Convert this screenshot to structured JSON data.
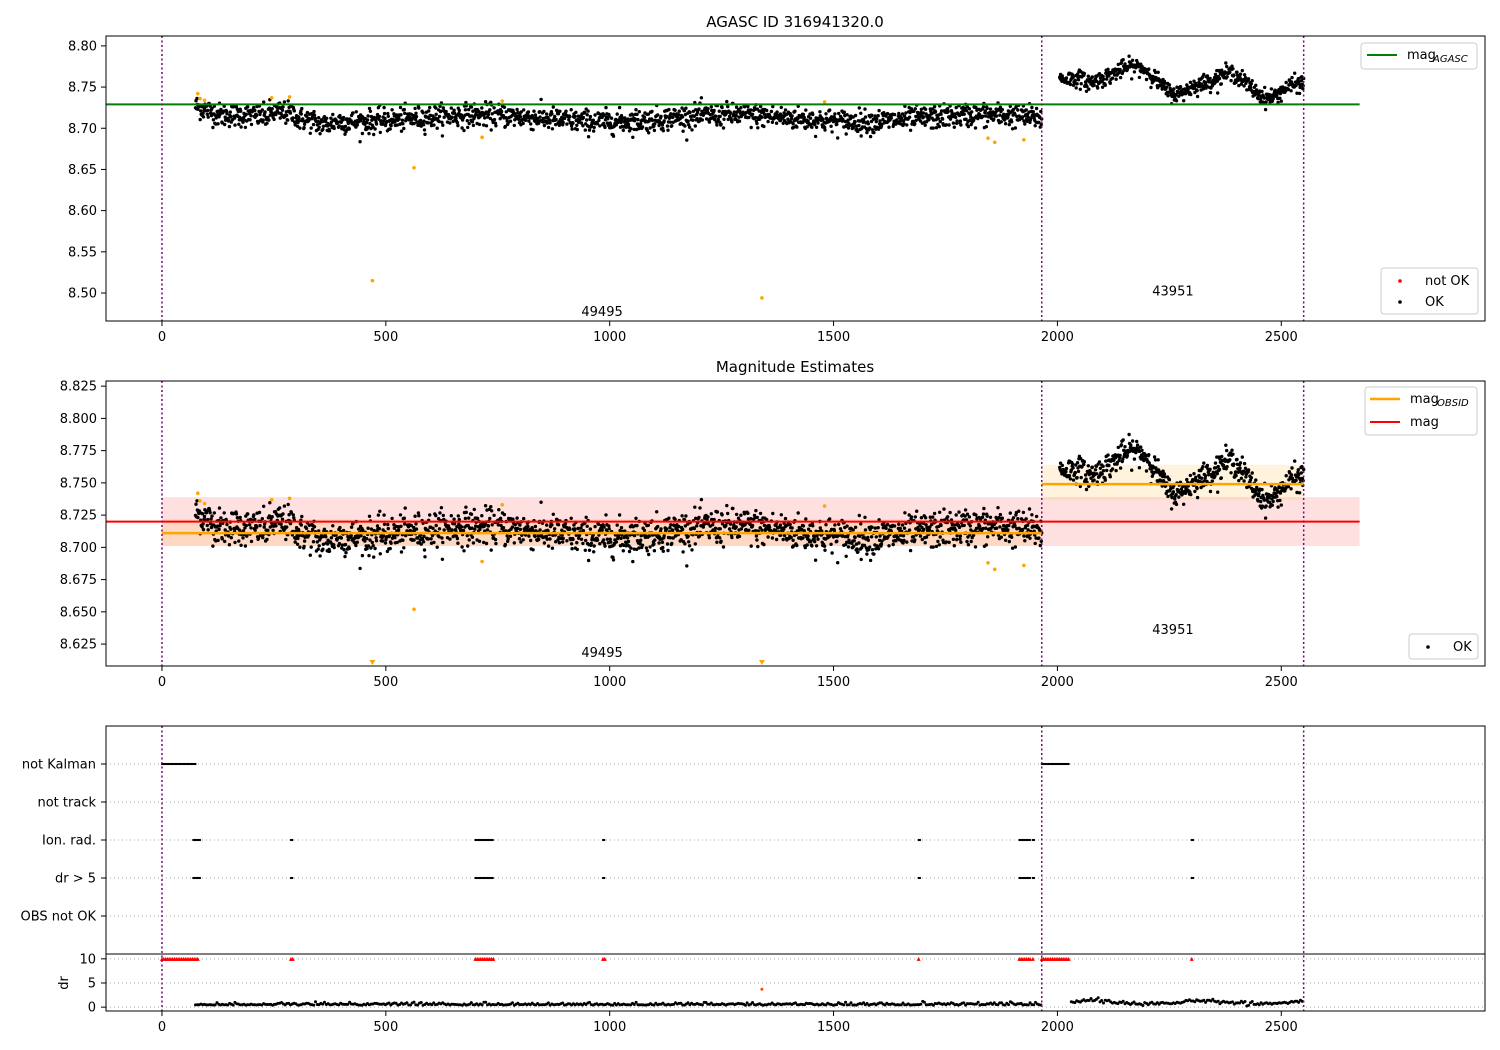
{
  "chart_data": [
    {
      "type": "scatter",
      "title": "AGASC ID 316941320.0",
      "xlim": [
        -125,
        2955
      ],
      "ylim": [
        8.466,
        8.812
      ],
      "xticks": [
        0,
        500,
        1000,
        1500,
        2000,
        2500
      ],
      "yticks": [
        8.5,
        8.55,
        8.6,
        8.65,
        8.7,
        8.75,
        8.8
      ],
      "ytick_labels": [
        "8.50",
        "8.55",
        "8.60",
        "8.65",
        "8.70",
        "8.75",
        "8.80"
      ],
      "obsid_boundaries": [
        0,
        1965,
        2550
      ],
      "obsid_labels": [
        {
          "text": "49495",
          "x": 983,
          "y": 8.477
        },
        {
          "text": "43951",
          "x": 2258,
          "y": 8.502
        }
      ],
      "mag_agasc": {
        "value": 8.729,
        "x": [
          0,
          2675
        ],
        "color": "#008000"
      },
      "segments": [
        {
          "x": [
            75,
            1965
          ],
          "mean": 8.712,
          "noise": 0.007
        },
        {
          "x": [
            2005,
            2550
          ],
          "mean": 8.75
        }
      ],
      "outliers": [
        {
          "x": 470,
          "y": 8.515
        },
        {
          "x": 563,
          "y": 8.652
        },
        {
          "x": 715,
          "y": 8.689
        },
        {
          "x": 1340,
          "y": 8.494
        },
        {
          "x": 1845,
          "y": 8.688
        },
        {
          "x": 1860,
          "y": 8.683
        },
        {
          "x": 1925,
          "y": 8.686
        },
        {
          "x": 80,
          "y": 8.742
        },
        {
          "x": 85,
          "y": 8.736
        },
        {
          "x": 95,
          "y": 8.734
        },
        {
          "x": 245,
          "y": 8.737
        },
        {
          "x": 285,
          "y": 8.738
        },
        {
          "x": 760,
          "y": 8.733
        },
        {
          "x": 1480,
          "y": 8.732
        }
      ],
      "legend_top": [
        {
          "label": "mag",
          "sub": "AGASC",
          "color": "#008000"
        }
      ],
      "legend_bottom": [
        {
          "label": "not OK",
          "color": "#ff0000"
        },
        {
          "label": "OK",
          "color": "#000000"
        }
      ]
    },
    {
      "type": "scatter",
      "title": "Magnitude Estimates",
      "xlim": [
        -125,
        2955
      ],
      "ylim": [
        8.608,
        8.829
      ],
      "xticks": [
        0,
        500,
        1000,
        1500,
        2000,
        2500
      ],
      "yticks": [
        8.625,
        8.65,
        8.675,
        8.7,
        8.725,
        8.75,
        8.775,
        8.8,
        8.825
      ],
      "ytick_labels": [
        "8.625",
        "8.650",
        "8.675",
        "8.700",
        "8.725",
        "8.750",
        "8.775",
        "8.800",
        "8.825"
      ],
      "obsid_boundaries": [
        0,
        1965,
        2550
      ],
      "obsid_labels": [
        {
          "text": "49495",
          "x": 983,
          "y": 8.618
        },
        {
          "text": "43951",
          "x": 2258,
          "y": 8.636
        }
      ],
      "mag": {
        "value": 8.72,
        "band": [
          8.701,
          8.739
        ],
        "x": [
          0,
          2675
        ],
        "color": "#ff0000"
      },
      "mag_obsid": [
        {
          "value": 8.711,
          "band": [
            8.701,
            8.722
          ],
          "x": [
            0,
            1965
          ]
        },
        {
          "value": 8.749,
          "band": [
            8.737,
            8.764
          ],
          "x": [
            1965,
            2550
          ]
        }
      ],
      "legend_top": [
        {
          "label": "mag",
          "sub": "OBSID",
          "color": "#ffa500"
        },
        {
          "label": "mag",
          "sub": "",
          "color": "#ff0000"
        }
      ],
      "legend_bottom": [
        {
          "label": "OK",
          "color": "#000000"
        }
      ]
    },
    {
      "type": "scatter",
      "title": "",
      "xlim": [
        -125,
        2955
      ],
      "xticks": [
        0,
        500,
        1000,
        1500,
        2000,
        2500
      ],
      "obsid_boundaries": [
        0,
        1965,
        2550
      ],
      "flag_labels": [
        "not Kalman",
        "not track",
        "Ion. rad.",
        "dr > 5",
        "OBS not OK"
      ],
      "flag_ranges": [
        [
          [
            0,
            75
          ],
          [
            1965,
            2025
          ]
        ],
        [],
        [
          [
            70,
            85
          ],
          [
            700,
            740
          ],
          [
            288,
            292
          ],
          [
            985,
            990
          ],
          [
            1690,
            1693
          ],
          [
            1915,
            1940
          ],
          [
            1945,
            1948
          ],
          [
            2300,
            2303
          ]
        ],
        [
          [
            70,
            85
          ],
          [
            700,
            740
          ],
          [
            288,
            292
          ],
          [
            985,
            990
          ],
          [
            1690,
            1693
          ],
          [
            1915,
            1940
          ],
          [
            1945,
            1948
          ],
          [
            2300,
            2303
          ]
        ],
        []
      ],
      "dr_ylabel": "dr",
      "dr_yticks": [
        0,
        5,
        10
      ],
      "dr_ylim": [
        -0.8,
        11
      ],
      "dr_clipped_ranges": [
        [
          0,
          80
        ],
        [
          700,
          740
        ],
        [
          288,
          292
        ],
        [
          985,
          990
        ],
        [
          1690,
          1693
        ],
        [
          1915,
          1940
        ],
        [
          1945,
          1948
        ],
        [
          1965,
          2025
        ],
        [
          2300,
          2303
        ]
      ],
      "dr_outlier": {
        "x": 1340,
        "y": 3.7
      }
    }
  ]
}
